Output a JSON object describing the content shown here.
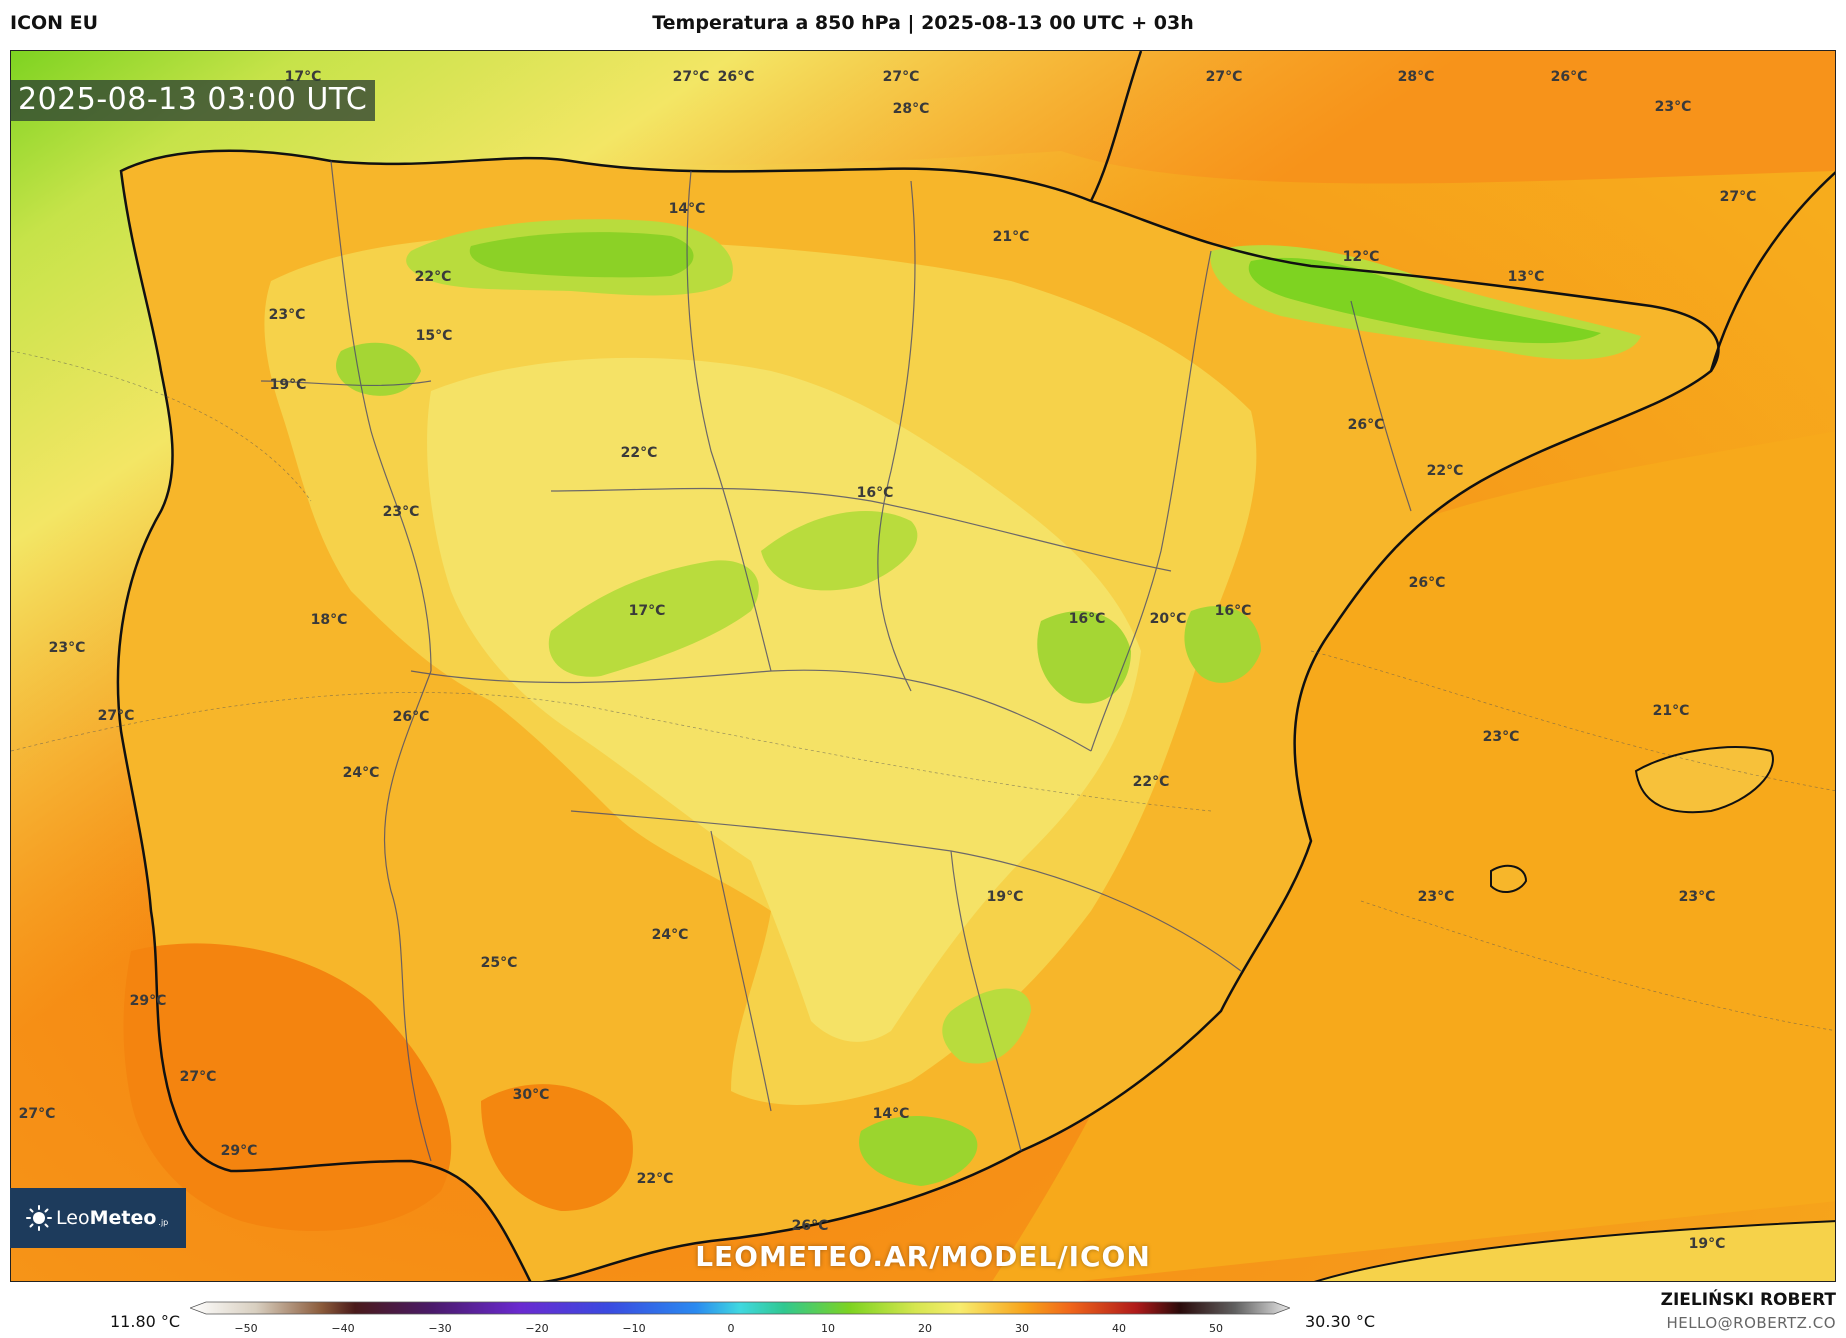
{
  "header": {
    "model_name": "ICON EU",
    "title": "Temperatura a 850 hPa | 2025-08-13 00 UTC + 03h"
  },
  "map": {
    "valid_time": "2025-08-13 03:00 UTC",
    "temperature_labels": [
      {
        "text": "17°C"
      },
      {
        "text": "27°C"
      },
      {
        "text": "26°C"
      },
      {
        "text": "27°C"
      },
      {
        "text": "28°C"
      },
      {
        "text": "27°C"
      },
      {
        "text": "28°C"
      },
      {
        "text": "26°C"
      },
      {
        "text": "23°C"
      },
      {
        "text": "27°C"
      },
      {
        "text": "14°C"
      },
      {
        "text": "21°C"
      },
      {
        "text": "12°C"
      },
      {
        "text": "13°C"
      },
      {
        "text": "22°C"
      },
      {
        "text": "23°C"
      },
      {
        "text": "15°C"
      },
      {
        "text": "19°C"
      },
      {
        "text": "22°C"
      },
      {
        "text": "26°C"
      },
      {
        "text": "22°C"
      },
      {
        "text": "16°C"
      },
      {
        "text": "23°C"
      },
      {
        "text": "26°C"
      },
      {
        "text": "17°C"
      },
      {
        "text": "16°C"
      },
      {
        "text": "20°C"
      },
      {
        "text": "16°C"
      },
      {
        "text": "18°C"
      },
      {
        "text": "23°C"
      },
      {
        "text": "27°C"
      },
      {
        "text": "26°C"
      },
      {
        "text": "21°C"
      },
      {
        "text": "23°C"
      },
      {
        "text": "24°C"
      },
      {
        "text": "22°C"
      },
      {
        "text": "19°C"
      },
      {
        "text": "23°C"
      },
      {
        "text": "23°C"
      },
      {
        "text": "24°C"
      },
      {
        "text": "25°C"
      },
      {
        "text": "29°C"
      },
      {
        "text": "27°C"
      },
      {
        "text": "30°C"
      },
      {
        "text": "27°C"
      },
      {
        "text": "14°C"
      },
      {
        "text": "29°C"
      },
      {
        "text": "22°C"
      },
      {
        "text": "26°C"
      },
      {
        "text": "19°C"
      }
    ],
    "logo": {
      "prefix": "Leo",
      "bold": "Meteo",
      "suffix": ".jp"
    },
    "watermark": "LEOMETEO.AR/MODEL/ICON",
    "colors": {
      "cold_green": "#7ed321",
      "light_yellow": "#f7ec6e",
      "orange": "#f7a21a",
      "warm_orange": "#f5820f"
    }
  },
  "legend": {
    "min_label": "11.80 °C",
    "max_label": "30.30 °C",
    "ticks": [
      "−50",
      "−40",
      "−30",
      "−20",
      "−10",
      "0",
      "10",
      "20",
      "30",
      "40",
      "50"
    ]
  },
  "footer": {
    "author": "ZIELIŃSKI ROBERT",
    "email": "HELLO@ROBERTZ.CO"
  }
}
